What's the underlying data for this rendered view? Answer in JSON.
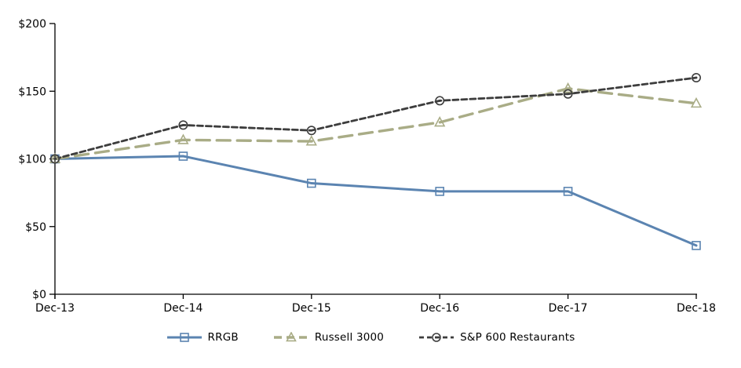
{
  "chart_data": {
    "type": "line",
    "title": "",
    "xlabel": "",
    "ylabel": "",
    "categories": [
      "Dec-13",
      "Dec-14",
      "Dec-15",
      "Dec-16",
      "Dec-17",
      "Dec-18"
    ],
    "series": [
      {
        "name": "RRGB",
        "values": [
          100,
          102,
          82,
          76,
          76,
          36
        ],
        "color": "#5b84b1",
        "dash": "solid",
        "marker": "square"
      },
      {
        "name": "Russell 3000",
        "values": [
          100,
          114,
          113,
          127,
          152,
          141
        ],
        "color": "#a9ac86",
        "dash": "long-dash",
        "marker": "triangle"
      },
      {
        "name": "S&P 600 Restaurants",
        "values": [
          100,
          125,
          121,
          143,
          148,
          160
        ],
        "color": "#3d3d3d",
        "dash": "short-dash",
        "marker": "circle"
      }
    ],
    "y_axis": {
      "min": 0,
      "max": 200,
      "step": 50,
      "tick_labels": [
        "$0",
        "$50",
        "$100",
        "$150",
        "$200"
      ]
    },
    "grid": false,
    "legend_position": "bottom",
    "axis_color": "#000000",
    "text_color": "#000000"
  }
}
